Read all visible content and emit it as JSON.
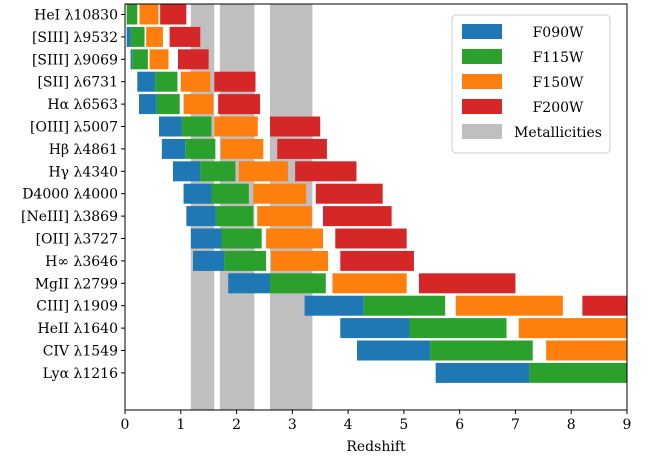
{
  "chart_data": {
    "type": "bar",
    "orientation": "horizontal-range",
    "xlabel": "Redshift",
    "xlim": [
      0,
      9
    ],
    "xticks": [
      "0",
      "1",
      "2",
      "3",
      "4",
      "5",
      "6",
      "7",
      "8",
      "9"
    ],
    "legend_position": "top-right",
    "grid": false,
    "lines": [
      "HeI λ10830",
      "[SIII] λ9532",
      "[SIII] λ9069",
      "[SII] λ6731",
      "Hα λ6563",
      "[OIII] λ5007",
      "Hβ λ4861",
      "Hγ λ4340",
      "D4000 λ4000",
      "[NeIII] λ3869",
      "[OII] λ3727",
      "H∞ λ3646",
      "MgII λ2799",
      "CIII] λ1909",
      "HeII λ1640",
      "CIV λ1549",
      "Lyα λ1216"
    ],
    "series": [
      {
        "name": "F090W",
        "color": "#1f77b4",
        "ranges": [
          [
            -0.05,
            0.0
          ],
          [
            0.03,
            0.1
          ],
          [
            0.1,
            0.13
          ],
          [
            0.22,
            0.54
          ],
          [
            0.25,
            0.57
          ],
          [
            0.61,
            1.02
          ],
          [
            0.66,
            1.08
          ],
          [
            0.86,
            1.35
          ],
          [
            1.05,
            1.55
          ],
          [
            1.1,
            1.63
          ],
          [
            1.18,
            1.73
          ],
          [
            1.22,
            1.78
          ],
          [
            1.85,
            2.6
          ],
          [
            3.22,
            4.28
          ],
          [
            3.86,
            5.1
          ],
          [
            4.16,
            5.47
          ],
          [
            5.57,
            7.25
          ]
        ]
      },
      {
        "name": "F115W",
        "color": "#2ca02c",
        "ranges": [
          [
            0.03,
            0.22
          ],
          [
            0.1,
            0.35
          ],
          [
            0.13,
            0.41
          ],
          [
            0.54,
            0.94
          ],
          [
            0.57,
            0.98
          ],
          [
            1.02,
            1.55
          ],
          [
            1.08,
            1.62
          ],
          [
            1.35,
            1.98
          ],
          [
            1.55,
            2.22
          ],
          [
            1.63,
            2.3
          ],
          [
            1.73,
            2.45
          ],
          [
            1.78,
            2.53
          ],
          [
            2.6,
            3.6
          ],
          [
            4.28,
            5.74
          ],
          [
            5.1,
            6.84
          ],
          [
            5.47,
            7.31
          ],
          [
            7.25,
            9.0
          ]
        ]
      },
      {
        "name": "F150W",
        "color": "#ff7f0e",
        "ranges": [
          [
            0.26,
            0.6
          ],
          [
            0.38,
            0.68
          ],
          [
            0.44,
            0.78
          ],
          [
            1.0,
            1.53
          ],
          [
            1.05,
            1.58
          ],
          [
            1.6,
            2.38
          ],
          [
            1.72,
            2.48
          ],
          [
            2.04,
            2.92
          ],
          [
            2.3,
            3.25
          ],
          [
            2.37,
            3.35
          ],
          [
            2.53,
            3.55
          ],
          [
            2.62,
            3.64
          ],
          [
            3.72,
            5.05
          ],
          [
            5.93,
            7.85
          ],
          [
            7.06,
            9.0
          ],
          [
            7.55,
            9.0
          ]
        ]
      },
      {
        "name": "F200W",
        "color": "#d62728",
        "ranges": [
          [
            0.63,
            1.1
          ],
          [
            0.8,
            1.35
          ],
          [
            0.95,
            1.5
          ],
          [
            1.6,
            2.34
          ],
          [
            1.67,
            2.42
          ],
          [
            2.6,
            3.5
          ],
          [
            2.73,
            3.62
          ],
          [
            3.05,
            4.15
          ],
          [
            3.42,
            4.62
          ],
          [
            3.55,
            4.78
          ],
          [
            3.77,
            5.05
          ],
          [
            3.86,
            5.18
          ],
          [
            5.27,
            7.0
          ],
          [
            8.2,
            9.0
          ]
        ]
      },
      {
        "name": "Metallicities",
        "color": "#bfbfbf",
        "spans": [
          [
            1.18,
            1.6
          ],
          [
            1.7,
            2.32
          ],
          [
            2.6,
            3.36
          ]
        ]
      }
    ]
  }
}
